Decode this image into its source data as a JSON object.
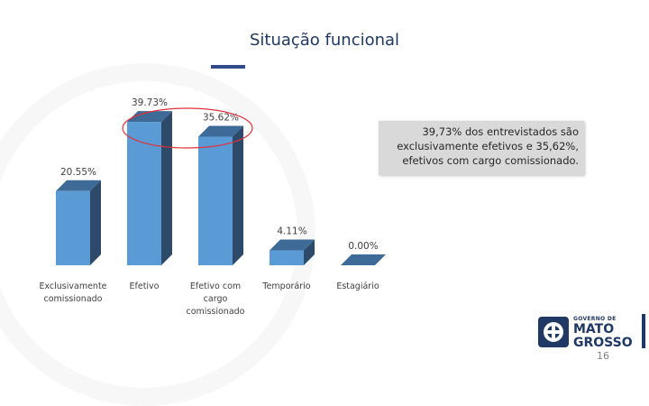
{
  "title": "Situação funcional",
  "callout_text": "39,73% dos entrevistados são exclusivamente efetivos e 35,62%, efetivos com cargo comissionado.",
  "logo": {
    "small": "GOVERNO DE",
    "line1": "MATO",
    "line2": "GROSSO"
  },
  "page_number": "16",
  "colors": {
    "bar_front": "#5b9bd5",
    "bar_side": "#2e4a6b",
    "bar_top": "#3d6a96",
    "highlight": "#e0313b",
    "title": "#1f3864"
  },
  "chart_data": {
    "type": "bar",
    "title": "Situação funcional",
    "categories": [
      "Exclusivamente comissionado",
      "Efetivo",
      "Efetivo com cargo comissionado",
      "Temporário",
      "Estagiário"
    ],
    "category_lines": [
      [
        "Exclusivamente",
        "comissionado"
      ],
      [
        "Efetivo"
      ],
      [
        "Efetivo com",
        "cargo",
        "comissionado"
      ],
      [
        "Temporário"
      ],
      [
        "Estagiário"
      ]
    ],
    "values": [
      20.55,
      39.73,
      35.62,
      4.11,
      0.0
    ],
    "data_labels": [
      "20.55%",
      "39.73%",
      "35.62%",
      "4.11%",
      "0.00%"
    ],
    "ylim": [
      0,
      40
    ],
    "grid": false,
    "legend": "none",
    "style": "3d-column",
    "highlighted": [
      "Efetivo",
      "Efetivo com cargo comissionado"
    ]
  }
}
